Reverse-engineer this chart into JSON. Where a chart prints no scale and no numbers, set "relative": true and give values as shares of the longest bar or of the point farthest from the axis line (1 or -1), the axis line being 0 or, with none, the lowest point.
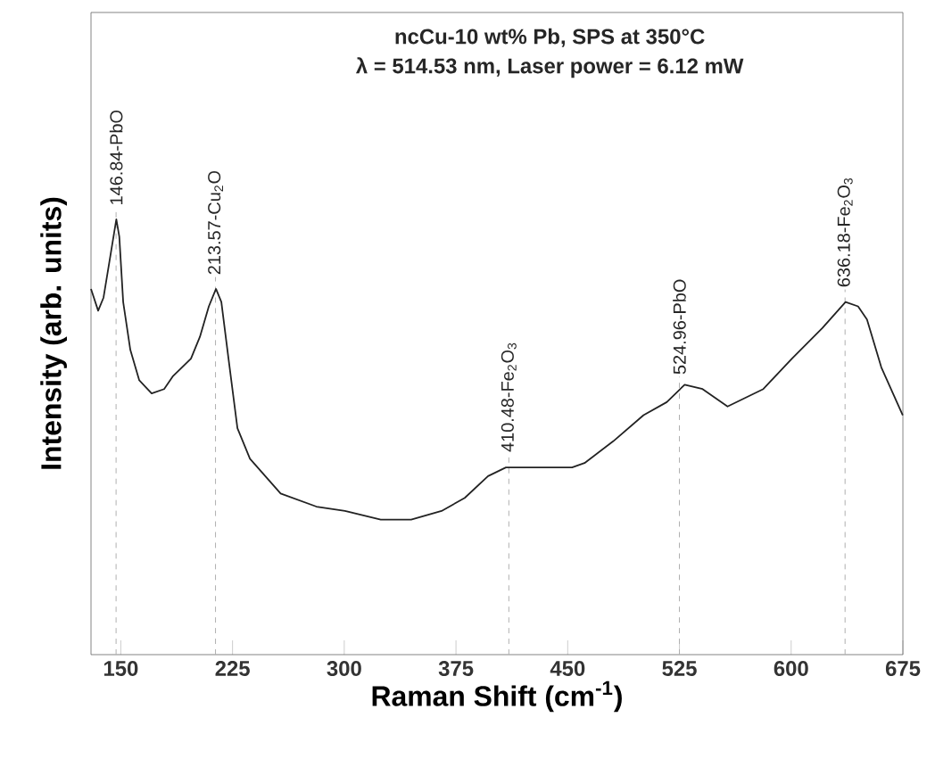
{
  "chart_data": {
    "type": "line",
    "title": "ncCu-10 wt% Pb, SPS at 350°C",
    "subtitle": "λ = 514.53 nm, Laser power = 6.12 mW",
    "xlabel": "Raman Shift (cm$^{-1}$)",
    "ylabel": "Intensity (arb. units)",
    "relative": true,
    "xlim": [
      130,
      675
    ],
    "xticks": [
      150,
      225,
      300,
      375,
      450,
      525,
      600,
      675
    ],
    "marker": "none",
    "line_style": "solid",
    "grid": false,
    "x": [
      130.0,
      134.8,
      138.4,
      143.2,
      147,
      149,
      151.6,
      156.4,
      162.4,
      170.7,
      179.1,
      185.1,
      191.1,
      197.1,
      203.1,
      209.1,
      213.9,
      217.5,
      222.3,
      228.3,
      236.7,
      257.3,
      281.3,
      300.5,
      324.5,
      344.9,
      365.3,
      380.9,
      396.5,
      408.5,
      420.5,
      452.9,
      461.3,
      480.5,
      500.9,
      516.5,
      528.5,
      540.5,
      557.3,
      581.3,
      600.5,
      620.9,
      636.5,
      644.9,
      650.9,
      660.5,
      674.9
    ],
    "series": [
      {
        "color": "#222222",
        "values": [
          0.84,
          0.79,
          0.82,
          0.92,
          1.0,
          0.96,
          0.81,
          0.7,
          0.63,
          0.6,
          0.61,
          0.64,
          0.66,
          0.68,
          0.73,
          0.8,
          0.84,
          0.81,
          0.68,
          0.52,
          0.45,
          0.37,
          0.34,
          0.33,
          0.31,
          0.31,
          0.33,
          0.36,
          0.41,
          0.43,
          0.43,
          0.43,
          0.44,
          0.49,
          0.55,
          0.58,
          0.62,
          0.61,
          0.57,
          0.61,
          0.68,
          0.75,
          0.81,
          0.8,
          0.77,
          0.66,
          0.55
        ]
      }
    ],
    "ref_lines": [
      {
        "axis": "x",
        "value": 146.84,
        "label": "146.84-PbO",
        "color": "#b0b0b0",
        "line_style": "dashed"
      },
      {
        "axis": "x",
        "value": 213.57,
        "label": "213.57-Cu$_{2}$O",
        "color": "#b0b0b0",
        "line_style": "dashed"
      },
      {
        "axis": "x",
        "value": 410.48,
        "label": "410.48-Fe$_{2}$O$_{3}$",
        "color": "#b0b0b0",
        "line_style": "dashed"
      },
      {
        "axis": "x",
        "value": 524.96,
        "label": "524.96-PbO",
        "color": "#b0b0b0",
        "line_style": "dashed"
      },
      {
        "axis": "x",
        "value": 636.18,
        "label": "636.18-Fe$_{2}$O$_{3}$",
        "color": "#b0b0b0",
        "line_style": "dashed"
      }
    ]
  }
}
